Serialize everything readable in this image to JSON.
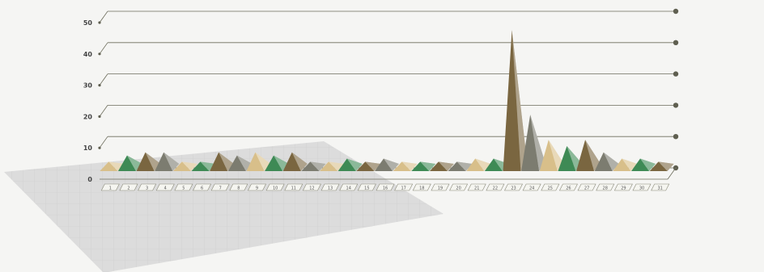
{
  "chart_data": {
    "type": "bar",
    "title": "",
    "xlabel": "",
    "ylabel": "",
    "ylim": [
      0,
      50
    ],
    "y_ticks": [
      "0",
      "10",
      "20",
      "30",
      "40",
      "50"
    ],
    "categories": [
      "1",
      "2",
      "3",
      "4",
      "5",
      "6",
      "7",
      "8",
      "9",
      "10",
      "11",
      "12",
      "13",
      "14",
      "15",
      "16",
      "17",
      "18",
      "19",
      "20",
      "21",
      "22",
      "23",
      "24",
      "25",
      "26",
      "27",
      "28",
      "29",
      "30",
      "31"
    ],
    "values": [
      3,
      5,
      6,
      6,
      3,
      3,
      6,
      5,
      6,
      5,
      6,
      3,
      3,
      4,
      3,
      4,
      3,
      3,
      3,
      3,
      4,
      4,
      45,
      18,
      10,
      8,
      10,
      6,
      4,
      4,
      3
    ],
    "bar_colors": [
      "#d8bf8a",
      "#3e8a55",
      "#7a6640",
      "#7c7c70",
      "#d8bf8a",
      "#3e8a55",
      "#7a6640",
      "#7c7c70",
      "#d8bf8a",
      "#3e8a55",
      "#7a6640",
      "#7c7c70",
      "#d8bf8a",
      "#3e8a55",
      "#7a6640",
      "#7c7c70",
      "#d8bf8a",
      "#3e8a55",
      "#7a6640",
      "#7c7c70",
      "#d8bf8a",
      "#3e8a55",
      "#7a6640",
      "#7c7c70",
      "#d8bf8a",
      "#3e8a55",
      "#7a6640",
      "#7c7c70",
      "#d8bf8a",
      "#3e8a55",
      "#7a6640"
    ],
    "grid": true,
    "legend": "none",
    "style": "3d-pyramid"
  },
  "colors": {
    "grid_line": "#6d6d5c",
    "grid_dot": "#5f5f50",
    "floor": "#dddddd",
    "label_box": "#f5f5f0",
    "label_border": "#8a8a7a"
  }
}
